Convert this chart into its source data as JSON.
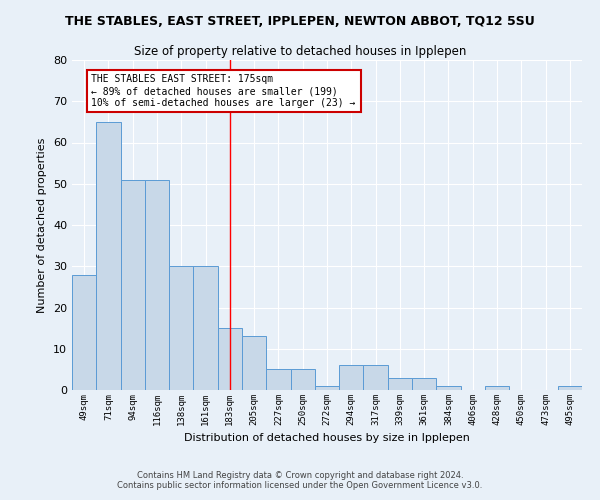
{
  "title": "THE STABLES, EAST STREET, IPPLEPEN, NEWTON ABBOT, TQ12 5SU",
  "subtitle": "Size of property relative to detached houses in Ipplepen",
  "xlabel": "Distribution of detached houses by size in Ipplepen",
  "ylabel": "Number of detached properties",
  "footer1": "Contains HM Land Registry data © Crown copyright and database right 2024.",
  "footer2": "Contains public sector information licensed under the Open Government Licence v3.0.",
  "bar_labels": [
    "49sqm",
    "71sqm",
    "94sqm",
    "116sqm",
    "138sqm",
    "161sqm",
    "183sqm",
    "205sqm",
    "227sqm",
    "250sqm",
    "272sqm",
    "294sqm",
    "317sqm",
    "339sqm",
    "361sqm",
    "384sqm",
    "406sqm",
    "428sqm",
    "450sqm",
    "473sqm",
    "495sqm"
  ],
  "bar_values": [
    28,
    65,
    51,
    51,
    30,
    30,
    15,
    13,
    5,
    5,
    1,
    6,
    6,
    3,
    3,
    1,
    0,
    1,
    0,
    0,
    1
  ],
  "bar_color": "#c8d8e8",
  "bar_edge_color": "#5b9bd5",
  "background_color": "#e8f0f8",
  "grid_color": "#ffffff",
  "ylim": [
    0,
    80
  ],
  "yticks": [
    0,
    10,
    20,
    30,
    40,
    50,
    60,
    70,
    80
  ],
  "redline_x": 6,
  "annotation_text": "THE STABLES EAST STREET: 175sqm\n← 89% of detached houses are smaller (199)\n10% of semi-detached houses are larger (23) →",
  "annotation_box_color": "#ffffff",
  "annotation_box_edge": "#cc0000"
}
